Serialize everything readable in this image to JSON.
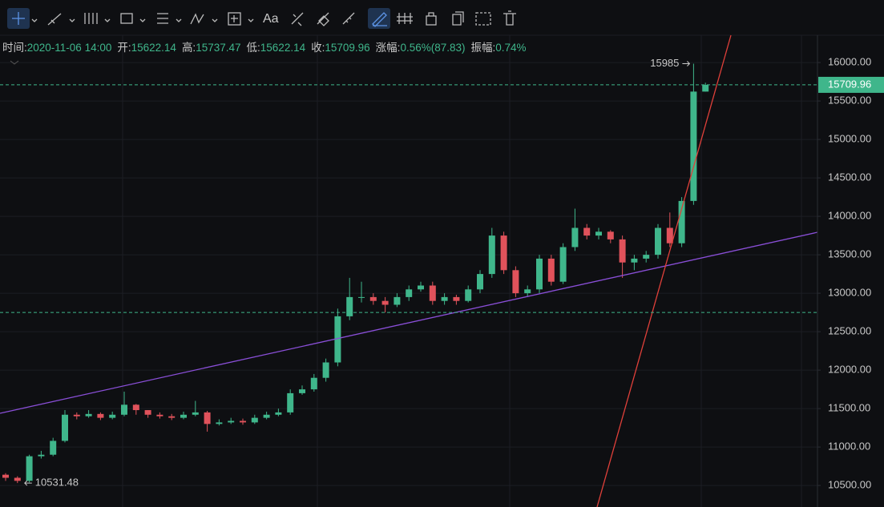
{
  "info": [
    {
      "label": "时间:",
      "value": "2020-11-06 14:00"
    },
    {
      "label": "开:",
      "value": "15622.14"
    },
    {
      "label": "高:",
      "value": "15737.47"
    },
    {
      "label": "低:",
      "value": "15622.14"
    },
    {
      "label": "收:",
      "value": "15709.96"
    },
    {
      "label": "涨幅:",
      "value": "0.56%(87.83)"
    },
    {
      "label": "振幅:",
      "value": "0.74%"
    }
  ],
  "toolbar": {
    "text_tool": "Aa"
  },
  "chart_data": {
    "type": "candlestick",
    "open": [
      10640,
      10600,
      10560,
      10880,
      10900,
      11080,
      11420,
      11400,
      11430,
      11380,
      11420,
      11550,
      11480,
      11420,
      11400,
      11380,
      11420,
      11450,
      11300,
      11320,
      11340,
      11320,
      11380,
      11420,
      11450,
      11700,
      11750,
      11900,
      12100,
      12700,
      12950,
      12950,
      12900,
      12850,
      12950,
      13050,
      13100,
      12900,
      12950,
      12900,
      13050,
      13250,
      13750,
      13300,
      13000,
      13050,
      13450,
      13150,
      13600,
      13850,
      13750,
      13800,
      13700,
      13400,
      13450,
      13500,
      13850,
      13650,
      14200,
      15622.14
    ],
    "high": [
      10660,
      10620,
      10900,
      10950,
      11120,
      11480,
      11450,
      11480,
      11450,
      11460,
      11720,
      11560,
      11480,
      11450,
      11430,
      11460,
      11600,
      11470,
      11360,
      11380,
      11370,
      11420,
      11460,
      11500,
      11750,
      11800,
      11950,
      12150,
      12800,
      13200,
      13150,
      13000,
      12950,
      13000,
      13100,
      13150,
      13150,
      13000,
      12980,
      13100,
      13300,
      13850,
      13800,
      13350,
      13100,
      13500,
      13500,
      13650,
      14100,
      13900,
      13850,
      13820,
      13750,
      13500,
      13550,
      13900,
      14050,
      14250,
      15985,
      15737.47
    ],
    "low": [
      10560,
      10531.48,
      10540,
      10850,
      10880,
      11060,
      11360,
      11380,
      11350,
      11360,
      11400,
      11420,
      11380,
      11370,
      11350,
      11360,
      11400,
      11200,
      11280,
      11300,
      11290,
      11300,
      11360,
      11400,
      11420,
      11680,
      11720,
      11850,
      12050,
      12650,
      12880,
      12850,
      12750,
      12820,
      12900,
      13020,
      12850,
      12850,
      12850,
      12880,
      13000,
      13200,
      13250,
      12950,
      12950,
      13000,
      13100,
      13120,
      13550,
      13700,
      13700,
      13650,
      13200,
      13300,
      13400,
      13450,
      13600,
      13600,
      14150,
      15622.14
    ],
    "close": [
      10600,
      10560,
      10880,
      10900,
      11080,
      11420,
      11400,
      11430,
      11380,
      11420,
      11550,
      11480,
      11420,
      11400,
      11380,
      11420,
      11450,
      11300,
      11320,
      11340,
      11320,
      11380,
      11420,
      11450,
      11700,
      11750,
      11900,
      12100,
      12700,
      12950,
      12950,
      12900,
      12850,
      12950,
      13050,
      13100,
      12900,
      12950,
      12900,
      13050,
      13250,
      13750,
      13300,
      13000,
      13050,
      13450,
      13150,
      13600,
      13850,
      13750,
      13800,
      13700,
      13400,
      13450,
      13500,
      13850,
      13650,
      14200,
      15622.14,
      15709.96
    ],
    "up_color": "#3fb68b",
    "down_color": "#e0525b",
    "ylim": [
      10220,
      16355
    ],
    "yticks": [
      {
        "value": 10500,
        "label": "10500.00"
      },
      {
        "value": 11000,
        "label": "11000.00"
      },
      {
        "value": 11500,
        "label": "11500.00"
      },
      {
        "value": 12000,
        "label": "12000.00"
      },
      {
        "value": 12500,
        "label": "12500.00"
      },
      {
        "value": 13000,
        "label": "13000.00"
      },
      {
        "value": 13500,
        "label": "13500.00"
      },
      {
        "value": 14000,
        "label": "14000.00"
      },
      {
        "value": 14500,
        "label": "14500.00"
      },
      {
        "value": 15000,
        "label": "15000.00"
      },
      {
        "value": 15500,
        "label": "15500.00"
      },
      {
        "value": 16000,
        "label": "16000.00"
      }
    ],
    "hline": 12750,
    "grid": true
  }
}
